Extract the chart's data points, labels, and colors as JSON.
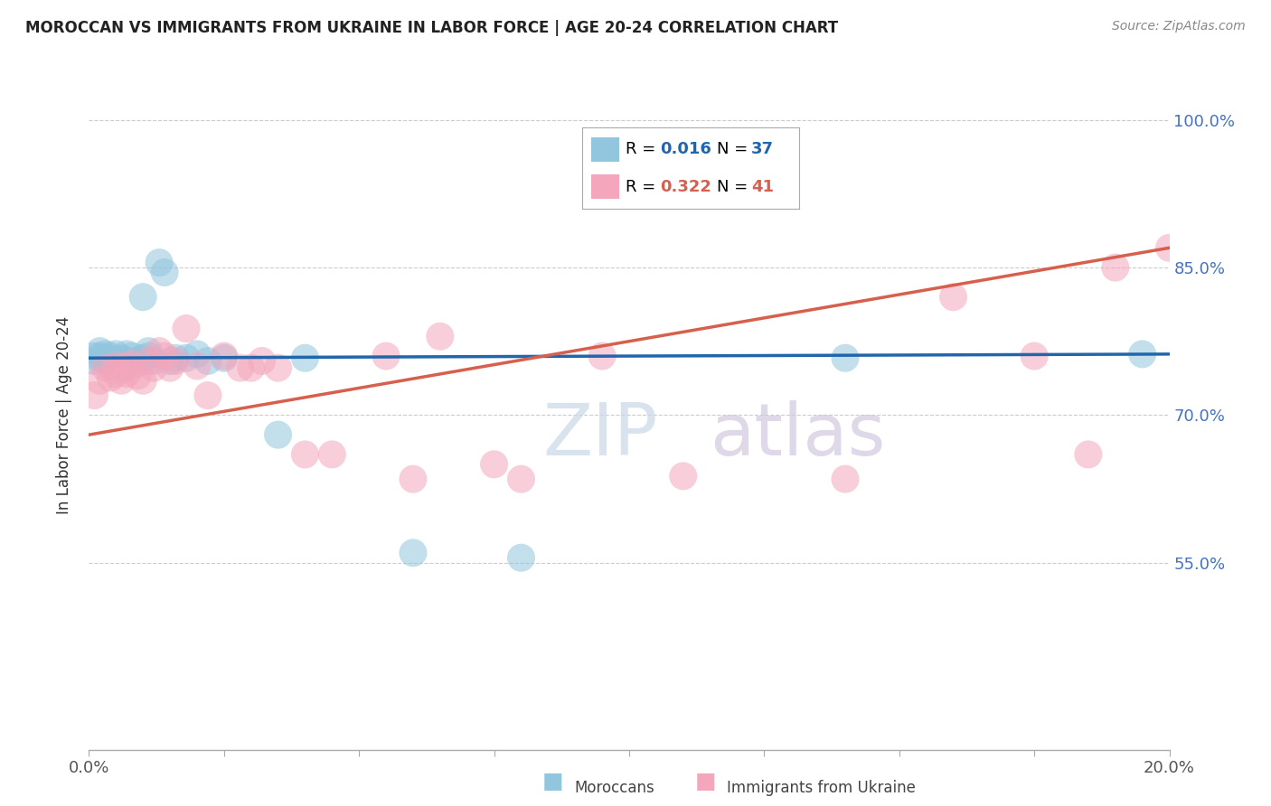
{
  "title": "MOROCCAN VS IMMIGRANTS FROM UKRAINE IN LABOR FORCE | AGE 20-24 CORRELATION CHART",
  "source": "Source: ZipAtlas.com",
  "ylabel": "In Labor Force | Age 20-24",
  "xmin": 0.0,
  "xmax": 0.2,
  "ymin": 0.36,
  "ymax": 1.04,
  "yticks": [
    1.0,
    0.85,
    0.7,
    0.55
  ],
  "ytick_labels": [
    "100.0%",
    "85.0%",
    "70.0%",
    "55.0%"
  ],
  "xticks": [
    0.0,
    0.025,
    0.05,
    0.075,
    0.1,
    0.125,
    0.15,
    0.175,
    0.2
  ],
  "xtick_labels": [
    "0.0%",
    "",
    "",
    "",
    "",
    "",
    "",
    "",
    "20.0%"
  ],
  "blue_color": "#92c5de",
  "pink_color": "#f4a6bc",
  "blue_line_color": "#2166ac",
  "pink_line_color": "#d6604d",
  "watermark_zip": "ZIP",
  "watermark_atlas": "atlas",
  "blue_x": [
    0.001,
    0.001,
    0.002,
    0.002,
    0.003,
    0.003,
    0.003,
    0.004,
    0.004,
    0.005,
    0.005,
    0.006,
    0.006,
    0.007,
    0.007,
    0.008,
    0.008,
    0.009,
    0.01,
    0.01,
    0.011,
    0.011,
    0.012,
    0.013,
    0.014,
    0.015,
    0.016,
    0.018,
    0.02,
    0.022,
    0.025,
    0.035,
    0.04,
    0.06,
    0.08,
    0.14,
    0.195
  ],
  "blue_y": [
    0.755,
    0.76,
    0.76,
    0.765,
    0.755,
    0.758,
    0.762,
    0.75,
    0.76,
    0.755,
    0.762,
    0.748,
    0.758,
    0.75,
    0.762,
    0.755,
    0.76,
    0.752,
    0.82,
    0.758,
    0.76,
    0.765,
    0.755,
    0.855,
    0.845,
    0.755,
    0.758,
    0.758,
    0.762,
    0.755,
    0.758,
    0.68,
    0.758,
    0.56,
    0.555,
    0.758,
    0.762
  ],
  "pink_x": [
    0.001,
    0.002,
    0.003,
    0.004,
    0.005,
    0.005,
    0.006,
    0.007,
    0.007,
    0.008,
    0.009,
    0.01,
    0.011,
    0.012,
    0.013,
    0.014,
    0.015,
    0.016,
    0.018,
    0.02,
    0.022,
    0.025,
    0.028,
    0.03,
    0.032,
    0.035,
    0.04,
    0.045,
    0.055,
    0.06,
    0.065,
    0.075,
    0.08,
    0.095,
    0.11,
    0.14,
    0.16,
    0.175,
    0.185,
    0.19,
    0.2
  ],
  "pink_y": [
    0.72,
    0.735,
    0.748,
    0.738,
    0.742,
    0.75,
    0.735,
    0.742,
    0.75,
    0.752,
    0.74,
    0.735,
    0.755,
    0.748,
    0.765,
    0.76,
    0.748,
    0.755,
    0.788,
    0.75,
    0.72,
    0.76,
    0.748,
    0.748,
    0.755,
    0.748,
    0.66,
    0.66,
    0.76,
    0.635,
    0.78,
    0.65,
    0.635,
    0.76,
    0.638,
    0.635,
    0.82,
    0.76,
    0.66,
    0.85,
    0.87
  ],
  "blue_trend_x0": 0.0,
  "blue_trend_x1": 0.2,
  "blue_trend_y0": 0.758,
  "blue_trend_y1": 0.762,
  "pink_trend_x0": 0.0,
  "pink_trend_x1": 0.2,
  "pink_trend_y0": 0.68,
  "pink_trend_y1": 0.87
}
